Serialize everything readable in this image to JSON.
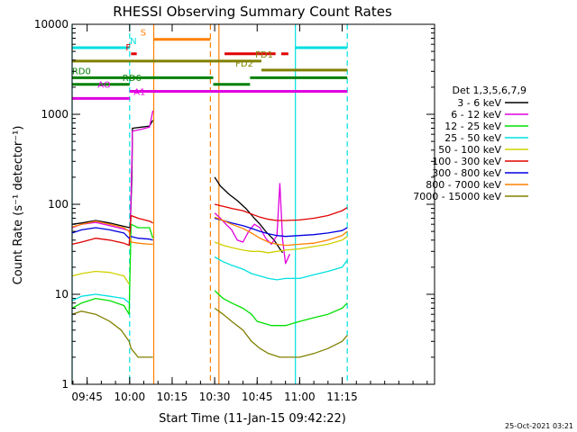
{
  "chart_data": {
    "type": "line",
    "title": "RHESSI Observing Summary Count Rates",
    "xlabel": "Start Time (11-Jan-15 09:42:22)",
    "ylabel": "Count Rate (s⁻¹ detector⁻¹)",
    "xlim_min": [
      -5.3,
      122.6
    ],
    "ylim": [
      1,
      10000
    ],
    "yscale": "log",
    "x_ticks": [
      {
        "label": "09:45",
        "value": 0
      },
      {
        "label": "10:00",
        "value": 15
      },
      {
        "label": "10:15",
        "value": 30
      },
      {
        "label": "10:30",
        "value": 45
      },
      {
        "label": "10:45",
        "value": 60
      },
      {
        "label": "11:00",
        "value": 75
      },
      {
        "label": "11:15",
        "value": 90
      }
    ],
    "y_ticks": [
      {
        "label": "1",
        "value": 1
      },
      {
        "label": "10",
        "value": 10
      },
      {
        "label": "100",
        "value": 100
      },
      {
        "label": "1000",
        "value": 1000
      },
      {
        "label": "10000",
        "value": 10000
      }
    ],
    "legend": {
      "title": "Det 1,3,5,6,7,9",
      "placement": "right",
      "entries": [
        {
          "label": "3 - 6 keV",
          "color": "#000000"
        },
        {
          "label": "6 - 12 keV",
          "color": "#e000e0"
        },
        {
          "label": "12 - 25 keV",
          "color": "#00e000"
        },
        {
          "label": "25 - 50 keV",
          "color": "#00e0e0"
        },
        {
          "label": "50 - 100 keV",
          "color": "#d0d000"
        },
        {
          "label": "100 - 300 keV",
          "color": "#e00000"
        },
        {
          "label": "300 - 800 keV",
          "color": "#0000e0"
        },
        {
          "label": "800 - 7000 keV",
          "color": "#ff8000"
        },
        {
          "label": "7000 - 15000 keV",
          "color": "#808000"
        }
      ]
    },
    "series": [
      {
        "name": "3 - 6 keV",
        "color": "#000000",
        "segments": [
          [
            [
              -5.3,
              60
            ],
            [
              -2,
              62
            ],
            [
              3,
              66
            ],
            [
              8,
              62
            ],
            [
              14,
              56
            ],
            [
              15.2,
              55
            ],
            [
              15.8,
              200
            ],
            [
              16,
              700
            ],
            [
              19,
              720
            ],
            [
              22,
              740
            ],
            [
              23.2,
              860
            ]
          ],
          [
            [
              45,
              200
            ],
            [
              47,
              160
            ],
            [
              50,
              130
            ],
            [
              53,
              110
            ],
            [
              56,
              90
            ],
            [
              59,
              70
            ],
            [
              61,
              60
            ],
            [
              63,
              50
            ],
            [
              66,
              40
            ],
            [
              68,
              32
            ],
            [
              69,
              29
            ]
          ]
        ]
      },
      {
        "name": "6 - 12 keV",
        "color": "#e000e0",
        "segments": [
          [
            [
              -5.3,
              55
            ],
            [
              -2,
              60
            ],
            [
              3,
              63
            ],
            [
              8,
              58
            ],
            [
              14,
              52
            ],
            [
              15.2,
              50
            ],
            [
              15.8,
              300
            ],
            [
              16,
              650
            ],
            [
              19,
              680
            ],
            [
              22,
              720
            ],
            [
              23.2,
              1100
            ]
          ],
          [
            [
              45,
              80
            ],
            [
              47,
              70
            ],
            [
              49,
              60
            ],
            [
              51,
              52
            ],
            [
              53,
              40
            ],
            [
              55,
              38
            ],
            [
              57,
              50
            ],
            [
              59,
              60
            ],
            [
              61,
              55
            ],
            [
              63,
              42
            ],
            [
              65,
              36
            ],
            [
              67,
              45
            ],
            [
              68,
              170
            ],
            [
              69,
              40
            ],
            [
              70,
              22
            ],
            [
              71.5,
              28
            ]
          ]
        ]
      },
      {
        "name": "12 - 25 keV",
        "color": "#00e000",
        "segments": [
          [
            [
              -5.3,
              7
            ],
            [
              -2,
              8
            ],
            [
              3,
              9
            ],
            [
              8,
              8.5
            ],
            [
              13,
              7.5
            ],
            [
              14.8,
              6
            ],
            [
              15.5,
              60
            ],
            [
              18,
              55
            ],
            [
              22,
              55
            ],
            [
              23.2,
              42
            ]
          ],
          [
            [
              45,
              11
            ],
            [
              48,
              9
            ],
            [
              51,
              8
            ],
            [
              55,
              7
            ],
            [
              58,
              6
            ],
            [
              60,
              5
            ],
            [
              62,
              4.8
            ],
            [
              65,
              4.5
            ],
            [
              70,
              4.5
            ],
            [
              75,
              5
            ],
            [
              80,
              5.5
            ],
            [
              85,
              6
            ],
            [
              90,
              7
            ],
            [
              91.8,
              8
            ]
          ]
        ]
      },
      {
        "name": "25 - 50 keV",
        "color": "#00e0e0",
        "segments": [
          [
            [
              -5.3,
              8.5
            ],
            [
              -2,
              9.5
            ],
            [
              3,
              10
            ],
            [
              8,
              9.5
            ],
            [
              13,
              9
            ],
            [
              14.8,
              8
            ]
          ],
          [
            [
              45,
              26
            ],
            [
              48,
              23
            ],
            [
              51,
              21
            ],
            [
              55,
              19
            ],
            [
              58,
              17
            ],
            [
              61,
              16
            ],
            [
              64,
              15
            ],
            [
              67,
              14.5
            ],
            [
              70,
              15
            ],
            [
              75,
              15
            ],
            [
              80,
              16.5
            ],
            [
              85,
              18
            ],
            [
              90,
              20
            ],
            [
              91.8,
              24
            ]
          ]
        ]
      },
      {
        "name": "50 - 100 keV",
        "color": "#d0d000",
        "segments": [
          [
            [
              -5.3,
              16
            ],
            [
              -2,
              17
            ],
            [
              3,
              18
            ],
            [
              8,
              17.5
            ],
            [
              13,
              16
            ],
            [
              14.8,
              13
            ]
          ],
          [
            [
              45,
              38
            ],
            [
              48,
              35
            ],
            [
              51,
              33
            ],
            [
              55,
              31
            ],
            [
              58,
              30
            ],
            [
              61,
              30
            ],
            [
              64,
              29
            ],
            [
              67,
              30
            ],
            [
              70,
              31
            ],
            [
              75,
              32
            ],
            [
              80,
              34
            ],
            [
              85,
              36
            ],
            [
              90,
              40
            ],
            [
              91.8,
              44
            ]
          ]
        ]
      },
      {
        "name": "100 - 300 keV",
        "color": "#e00000",
        "segments": [
          [
            [
              -5.3,
              36
            ],
            [
              -2,
              38
            ],
            [
              3,
              42
            ],
            [
              8,
              40
            ],
            [
              13,
              37
            ],
            [
              14.8,
              35
            ],
            [
              15.5,
              75
            ],
            [
              18,
              70
            ],
            [
              22,
              65
            ],
            [
              23.2,
              62
            ]
          ],
          [
            [
              45,
              100
            ],
            [
              48,
              95
            ],
            [
              51,
              90
            ],
            [
              55,
              85
            ],
            [
              58,
              78
            ],
            [
              61,
              72
            ],
            [
              64,
              68
            ],
            [
              67,
              66
            ],
            [
              70,
              66
            ],
            [
              75,
              67
            ],
            [
              80,
              70
            ],
            [
              85,
              75
            ],
            [
              90,
              85
            ],
            [
              91.8,
              92
            ]
          ]
        ]
      },
      {
        "name": "300 - 800 keV",
        "color": "#0000e0",
        "segments": [
          [
            [
              -5.3,
              48
            ],
            [
              -2,
              52
            ],
            [
              3,
              55
            ],
            [
              8,
              52
            ],
            [
              13,
              48
            ],
            [
              14.8,
              42
            ],
            [
              15.5,
              44
            ],
            [
              18,
              42
            ],
            [
              22,
              41
            ],
            [
              23.2,
              40
            ]
          ],
          [
            [
              45,
              70
            ],
            [
              48,
              66
            ],
            [
              51,
              62
            ],
            [
              55,
              58
            ],
            [
              58,
              54
            ],
            [
              61,
              50
            ],
            [
              64,
              47
            ],
            [
              67,
              45
            ],
            [
              70,
              44
            ],
            [
              75,
              45
            ],
            [
              80,
              46
            ],
            [
              85,
              48
            ],
            [
              90,
              51
            ],
            [
              91.8,
              55
            ]
          ]
        ]
      },
      {
        "name": "800 - 7000 keV",
        "color": "#ff8000",
        "segments": [
          [
            [
              -5.3,
              56
            ],
            [
              -2,
              60
            ],
            [
              3,
              65
            ],
            [
              8,
              60
            ],
            [
              13,
              55
            ],
            [
              14.8,
              50
            ],
            [
              15.5,
              38
            ],
            [
              18,
              37
            ],
            [
              22,
              36
            ],
            [
              23.2,
              36
            ]
          ],
          [
            [
              45,
              72
            ],
            [
              48,
              66
            ],
            [
              51,
              60
            ],
            [
              55,
              54
            ],
            [
              58,
              48
            ],
            [
              61,
              42
            ],
            [
              64,
              38
            ],
            [
              67,
              36
            ],
            [
              70,
              35
            ],
            [
              75,
              36
            ],
            [
              80,
              37
            ],
            [
              85,
              40
            ],
            [
              90,
              45
            ],
            [
              91.8,
              50
            ]
          ]
        ]
      },
      {
        "name": "7000 - 15000 keV",
        "color": "#808000",
        "segments": [
          [
            [
              -5.3,
              6
            ],
            [
              -2,
              6.5
            ],
            [
              3,
              6
            ],
            [
              8,
              5
            ],
            [
              12,
              4
            ],
            [
              14.8,
              3
            ],
            [
              15.5,
              2.5
            ],
            [
              18,
              2
            ],
            [
              22,
              2
            ],
            [
              23.2,
              2
            ]
          ],
          [
            [
              45,
              7
            ],
            [
              48,
              6
            ],
            [
              51,
              5
            ],
            [
              55,
              4
            ],
            [
              58,
              3
            ],
            [
              61,
              2.5
            ],
            [
              64,
              2.2
            ],
            [
              68,
              2
            ],
            [
              75,
              2
            ],
            [
              80,
              2.2
            ],
            [
              85,
              2.5
            ],
            [
              90,
              3
            ],
            [
              91.8,
              3.5
            ]
          ]
        ]
      }
    ],
    "vertical_lines": [
      {
        "x": -5.3,
        "color": "#00e0e0",
        "style": "solid"
      },
      {
        "x": 15.0,
        "color": "#00e0e0",
        "style": "dashed"
      },
      {
        "x": 23.5,
        "color": "#ff8000",
        "style": "solid"
      },
      {
        "x": 43.5,
        "color": "#ff8000",
        "style": "dashed"
      },
      {
        "x": 46.5,
        "color": "#ff8000",
        "style": "solid"
      },
      {
        "x": 73.5,
        "color": "#00e0e0",
        "style": "solid"
      },
      {
        "x": 91.8,
        "color": "#00e0e0",
        "style": "dashed"
      }
    ],
    "flag_bars": [
      {
        "label": "N",
        "label_x": 16.3,
        "y": 5500,
        "color": "#00e0e0",
        "ranges": [
          [
            -5.3,
            15.0
          ],
          [
            73.5,
            91.8
          ]
        ]
      },
      {
        "label": "S",
        "label_x": 19.8,
        "y": 6800,
        "color": "#ff8000",
        "ranges": [
          [
            23.5,
            43.5
          ]
        ]
      },
      {
        "label": "F",
        "label_x": 14.5,
        "y": 4700,
        "color": "#e00000",
        "ranges": [
          [
            15.5,
            17.5
          ],
          [
            48.5,
            66.5
          ],
          [
            68.5,
            71.0
          ]
        ]
      },
      {
        "label": "FD1",
        "label_x": 62.5,
        "y": 3900,
        "color": "#808000",
        "ranges": [
          [
            -5.3,
            61.5
          ]
        ]
      },
      {
        "label": "FD2",
        "label_x": 55.5,
        "y": 3100,
        "color": "#808000",
        "ranges": [
          [
            61.5,
            91.8
          ]
        ]
      },
      {
        "label": "RD0",
        "label_x": -2.0,
        "y": 2550,
        "color": "#008000",
        "ranges": [
          [
            -5.3,
            44.5
          ],
          [
            57.5,
            91.8
          ]
        ]
      },
      {
        "label": "RD6",
        "label_x": 15.8,
        "y": 2150,
        "color": "#008000",
        "ranges": [
          [
            -5.3,
            15.0
          ],
          [
            44.5,
            57.5
          ]
        ]
      },
      {
        "label": "AO",
        "label_x": 6.0,
        "y": 1800,
        "color": "#e000e0",
        "ranges": [
          [
            15.0,
            91.8
          ]
        ]
      },
      {
        "label": "A1",
        "label_x": 18.5,
        "y": 1500,
        "color": "#e000e0",
        "ranges": [
          [
            -5.3,
            15.0
          ]
        ]
      }
    ]
  },
  "footer": {
    "timestamp": "25-Oct-2021 03:21"
  }
}
